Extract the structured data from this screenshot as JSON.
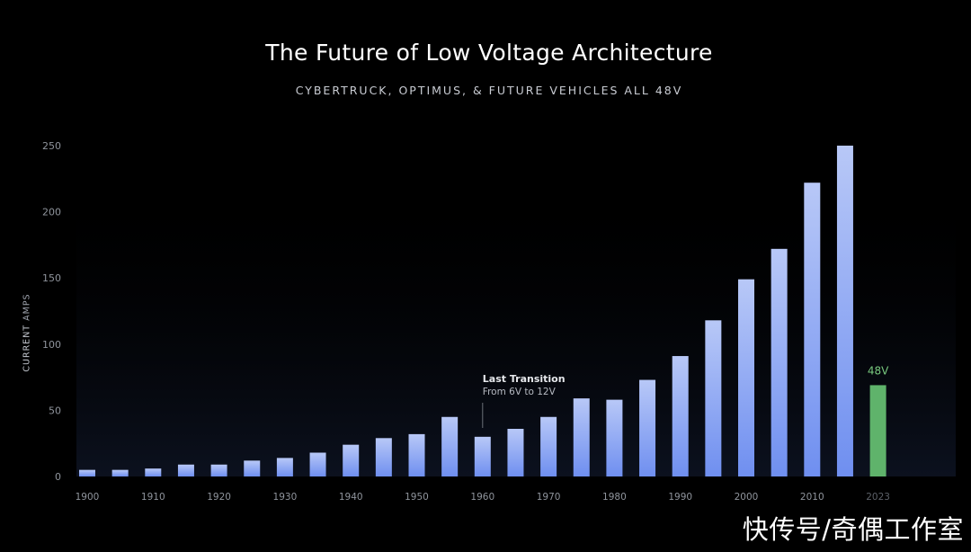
{
  "chart_data": {
    "type": "bar",
    "title": "The Future of Low Voltage Architecture",
    "subtitle": "CYBERTRUCK, OPTIMUS, & FUTURE VEHICLES ALL 48V",
    "ylabel_strong": "CURRENT",
    "ylabel_light": "AMPS",
    "xlabel": "",
    "ylim": [
      0,
      250
    ],
    "yticks": [
      0,
      50,
      100,
      150,
      200,
      250
    ],
    "xtick_labels": [
      "1900",
      "1910",
      "1920",
      "1930",
      "1940",
      "1950",
      "1960",
      "1970",
      "1980",
      "1990",
      "2000",
      "2010",
      "2023"
    ],
    "categories": [
      "1900",
      "1905",
      "1910",
      "1915",
      "1920",
      "1925",
      "1930",
      "1935",
      "1940",
      "1945",
      "1950",
      "1955",
      "1960",
      "1965",
      "1970",
      "1975",
      "1980",
      "1985",
      "1990",
      "1995",
      "2000",
      "2005",
      "2010",
      "2015",
      "2023"
    ],
    "series": [
      {
        "values": [
          5,
          5,
          6,
          9,
          9,
          12,
          14,
          18,
          24,
          29,
          32,
          45,
          30,
          36,
          45,
          59,
          58,
          73,
          91,
          118,
          149,
          172,
          222,
          250,
          69
        ],
        "highlight_last": true
      }
    ],
    "colors": {
      "bar_top": "#b8c8f7",
      "bar_bottom": "#6f8ff0",
      "highlight": "#5fb36b",
      "highlight_label": "#78c97f",
      "axis_text": "#8f949c"
    },
    "grid": false,
    "annotations": [
      {
        "x": "1960",
        "title": "Last Transition",
        "text": "From 6V to 12V"
      },
      {
        "x": "2023",
        "text": "48V"
      }
    ]
  },
  "watermark": "快传号/奇偶工作室"
}
